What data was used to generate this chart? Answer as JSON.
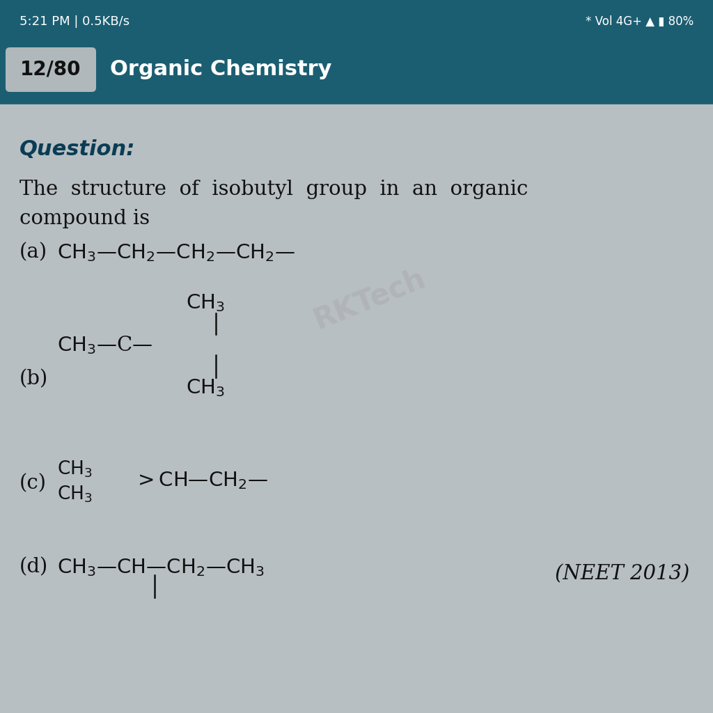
{
  "status_bar_bg": "#1b5e72",
  "header_bg": "#1b5e72",
  "badge_bg": "#b0b8bb",
  "badge_text": "12/80",
  "header_title": "Organic Chemistry",
  "body_bg": "#b8bfc2",
  "question_label": "Question:",
  "text_color": "#111111",
  "title_color": "#0d3b54",
  "neet_ref": "(NEET 2013)",
  "watermark": "RKTech",
  "status_left": "5:21 PM | 0.5KB/s",
  "status_right": "80%"
}
